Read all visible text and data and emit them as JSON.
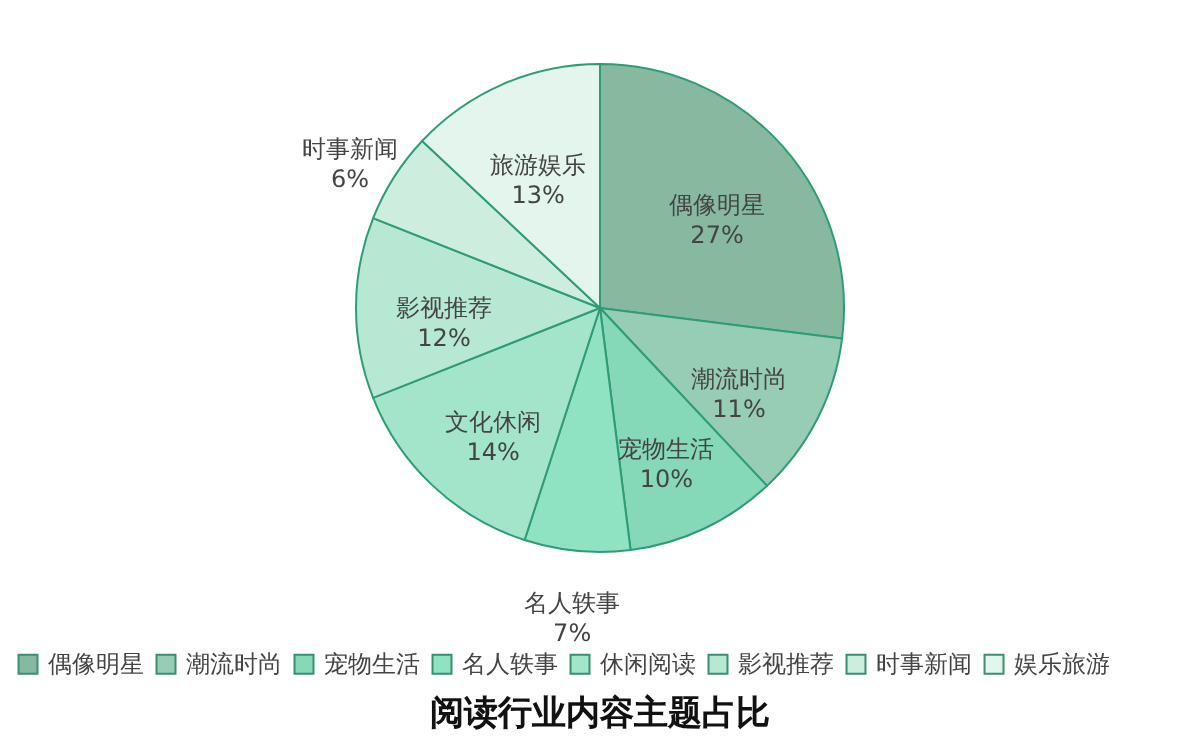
{
  "chart_data": {
    "type": "pie",
    "title": "阅读行业内容主题占比",
    "categories": [
      "偶像明星",
      "潮流时尚",
      "宠物生活",
      "名人轶事",
      "休闲阅读",
      "影视推荐",
      "时事新闻",
      "娱乐旅游"
    ],
    "values": [
      27,
      11,
      10,
      7,
      14,
      12,
      6,
      13
    ],
    "value_labels": [
      "偶像明星\n27%",
      "潮流时尚\n11%",
      "宠物生活\n10%",
      "名人轶事\n7%",
      "文化休闲\n14%",
      "影视推荐\n12%",
      "时事新闻\n6%",
      "旅游娱乐\n13%"
    ],
    "colors": [
      "#86b9a0",
      "#97cdb4",
      "#85d8b8",
      "#8fe3c3",
      "#a3e5cb",
      "#b6e8d3",
      "#cdeedf",
      "#e3f5ec"
    ],
    "legend": "bottom"
  }
}
